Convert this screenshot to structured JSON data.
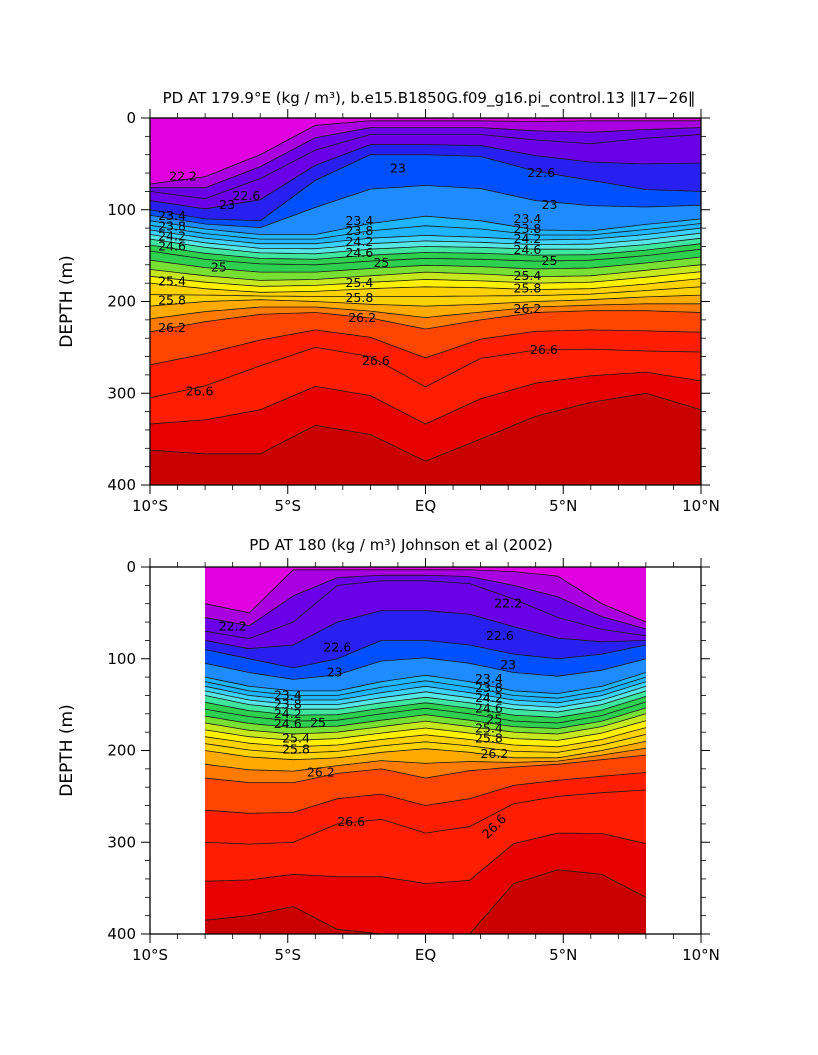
{
  "chart_data": [
    {
      "type": "heatmap",
      "title": "PD AT 179.9°E (kg / m³), b.e15.B1850G.f09_g16.pi_control.13 ‖17−26‖",
      "xlabel": "",
      "ylabel": "DEPTH (m)",
      "xlim": [
        -10,
        10
      ],
      "ylim": [
        400,
        0
      ],
      "x_ticks": [
        -10,
        -5,
        0,
        5,
        10
      ],
      "x_tick_labels": [
        "10°S",
        "5°S",
        "EQ",
        "5°N",
        "10°N"
      ],
      "y_ticks": [
        0,
        100,
        200,
        300,
        400
      ],
      "y_tick_labels": [
        "0",
        "100",
        "200",
        "300",
        "400"
      ],
      "data_xrange": [
        -10,
        10
      ],
      "contour_levels": [
        21.6,
        21.8,
        22.0,
        22.2,
        22.4,
        22.6,
        22.8,
        23.0,
        23.2,
        23.4,
        23.6,
        23.8,
        24.0,
        24.2,
        24.4,
        24.6,
        24.8,
        25.0,
        25.2,
        25.4,
        25.6,
        25.8,
        26.0,
        26.2,
        26.4,
        26.6,
        26.8,
        27.0
      ],
      "isopycnal_depths_m": [
        {
          "value": 22.2,
          "depth": [
            72,
            64,
            40,
            8,
            3,
            3,
            3,
            4,
            3,
            3,
            3
          ]
        },
        {
          "value": 22.6,
          "depth": [
            80,
            88,
            66,
            35,
            18,
            18,
            18,
            24,
            28,
            22,
            18
          ]
        },
        {
          "value": 23.0,
          "depth": [
            100,
            110,
            112,
            68,
            40,
            40,
            42,
            58,
            68,
            78,
            80
          ]
        },
        {
          "value": 23.4,
          "depth": [
            112,
            121,
            127,
            127,
            115,
            107,
            112,
            122,
            123,
            116,
            110
          ]
        },
        {
          "value": 23.8,
          "depth": [
            122,
            131,
            137,
            137,
            131,
            128,
            130,
            133,
            132,
            127,
            120
          ]
        },
        {
          "value": 24.2,
          "depth": [
            132,
            141,
            147,
            148,
            143,
            140,
            141,
            143,
            143,
            138,
            131
          ]
        },
        {
          "value": 24.6,
          "depth": [
            145,
            154,
            159,
            160,
            156,
            153,
            154,
            156,
            155,
            150,
            143
          ]
        },
        {
          "value": 25.0,
          "depth": [
            165,
            172,
            177,
            176,
            172,
            168,
            170,
            173,
            172,
            166,
            160
          ]
        },
        {
          "value": 25.4,
          "depth": [
            180,
            186,
            190,
            189,
            186,
            184,
            185,
            187,
            186,
            181,
            175
          ]
        },
        {
          "value": 25.8,
          "depth": [
            205,
            200,
            198,
            200,
            203,
            205,
            203,
            200,
            198,
            195,
            193
          ]
        },
        {
          "value": 26.2,
          "depth": [
            233,
            222,
            214,
            212,
            218,
            230,
            220,
            212,
            210,
            210,
            212
          ]
        },
        {
          "value": 26.6,
          "depth": [
            305,
            292,
            270,
            250,
            260,
            293,
            262,
            253,
            252,
            254,
            255
          ]
        },
        {
          "value": 27.0,
          "depth": [
            362,
            366,
            366,
            335,
            345,
            374,
            350,
            325,
            310,
            300,
            318
          ]
        }
      ],
      "contour_labels": [
        {
          "text": "22.2",
          "x": -8.8,
          "depth": 64
        },
        {
          "text": "22.6",
          "x": -6.5,
          "depth": 85
        },
        {
          "text": "23",
          "x": -7.2,
          "depth": 95
        },
        {
          "text": "23.4",
          "x": -9.2,
          "depth": 107
        },
        {
          "text": "23.8",
          "x": -9.2,
          "depth": 118
        },
        {
          "text": "24.2",
          "x": -9.2,
          "depth": 129
        },
        {
          "text": "24.6",
          "x": -9.2,
          "depth": 140
        },
        {
          "text": "25",
          "x": -7.5,
          "depth": 163
        },
        {
          "text": "25.4",
          "x": -9.2,
          "depth": 178
        },
        {
          "text": "25.8",
          "x": -9.2,
          "depth": 199
        },
        {
          "text": "26.2",
          "x": -9.2,
          "depth": 229
        },
        {
          "text": "26.6",
          "x": -8.2,
          "depth": 298
        },
        {
          "text": "23.4",
          "x": -2.4,
          "depth": 112
        },
        {
          "text": "23.8",
          "x": -2.4,
          "depth": 123
        },
        {
          "text": "24.2",
          "x": -2.4,
          "depth": 135
        },
        {
          "text": "24.6",
          "x": -2.4,
          "depth": 147
        },
        {
          "text": "25",
          "x": -1.6,
          "depth": 158
        },
        {
          "text": "25.4",
          "x": -2.4,
          "depth": 180
        },
        {
          "text": "25.8",
          "x": -2.4,
          "depth": 196
        },
        {
          "text": "26.2",
          "x": -2.3,
          "depth": 218
        },
        {
          "text": "26.6",
          "x": -1.8,
          "depth": 265
        },
        {
          "text": "23",
          "x": -1.0,
          "depth": 55
        },
        {
          "text": "22.6",
          "x": 4.2,
          "depth": 60
        },
        {
          "text": "23",
          "x": 4.5,
          "depth": 95
        },
        {
          "text": "23.4",
          "x": 3.7,
          "depth": 110
        },
        {
          "text": "23.8",
          "x": 3.7,
          "depth": 121
        },
        {
          "text": "24.2",
          "x": 3.7,
          "depth": 132
        },
        {
          "text": "24.6",
          "x": 3.7,
          "depth": 144
        },
        {
          "text": "25",
          "x": 4.5,
          "depth": 156
        },
        {
          "text": "25.4",
          "x": 3.7,
          "depth": 172
        },
        {
          "text": "25.8",
          "x": 3.7,
          "depth": 186
        },
        {
          "text": "26.2",
          "x": 3.7,
          "depth": 208
        },
        {
          "text": "26.6",
          "x": 4.3,
          "depth": 253
        }
      ]
    },
    {
      "type": "heatmap",
      "title": "PD AT 180 (kg / m³) Johnson et al (2002)",
      "xlabel": "",
      "ylabel": "DEPTH (m)",
      "xlim": [
        -10,
        10
      ],
      "ylim": [
        400,
        0
      ],
      "x_ticks": [
        -10,
        -5,
        0,
        5,
        10
      ],
      "x_tick_labels": [
        "10°S",
        "5°S",
        "EQ",
        "5°N",
        "10°N"
      ],
      "y_ticks": [
        0,
        100,
        200,
        300,
        400
      ],
      "y_tick_labels": [
        "0",
        "100",
        "200",
        "300",
        "400"
      ],
      "data_xrange": [
        -8,
        8
      ],
      "contour_levels": [
        21.6,
        21.8,
        22.0,
        22.2,
        22.4,
        22.6,
        22.8,
        23.0,
        23.2,
        23.4,
        23.6,
        23.8,
        24.0,
        24.2,
        24.4,
        24.6,
        24.8,
        25.0,
        25.2,
        25.4,
        25.6,
        25.8,
        26.0,
        26.2,
        26.4,
        26.6,
        26.8,
        27.0
      ],
      "isopycnal_depths_m": [
        {
          "value": 22.2,
          "depth": [
            40,
            50,
            3,
            3,
            3,
            3,
            3,
            5,
            10,
            40,
            60
          ]
        },
        {
          "value": 22.6,
          "depth": [
            70,
            78,
            60,
            20,
            15,
            15,
            18,
            35,
            55,
            68,
            75
          ]
        },
        {
          "value": 23.0,
          "depth": [
            90,
            100,
            110,
            100,
            80,
            80,
            85,
            95,
            100,
            95,
            85
          ]
        },
        {
          "value": 23.4,
          "depth": [
            120,
            130,
            135,
            135,
            125,
            118,
            125,
            135,
            138,
            130,
            115
          ]
        },
        {
          "value": 23.8,
          "depth": [
            130,
            140,
            145,
            145,
            137,
            130,
            137,
            145,
            148,
            140,
            125
          ]
        },
        {
          "value": 24.2,
          "depth": [
            140,
            150,
            155,
            155,
            148,
            142,
            148,
            155,
            158,
            150,
            135
          ]
        },
        {
          "value": 24.6,
          "depth": [
            155,
            163,
            168,
            167,
            160,
            154,
            160,
            168,
            170,
            162,
            147
          ]
        },
        {
          "value": 25.0,
          "depth": [
            170,
            178,
            182,
            180,
            174,
            168,
            174,
            180,
            182,
            174,
            160
          ]
        },
        {
          "value": 25.4,
          "depth": [
            185,
            192,
            196,
            194,
            188,
            183,
            188,
            194,
            196,
            188,
            175
          ]
        },
        {
          "value": 25.8,
          "depth": [
            200,
            207,
            210,
            208,
            202,
            198,
            202,
            208,
            208,
            200,
            190
          ]
        },
        {
          "value": 26.2,
          "depth": [
            230,
            235,
            235,
            225,
            220,
            230,
            222,
            218,
            215,
            210,
            205
          ]
        },
        {
          "value": 26.6,
          "depth": [
            300,
            302,
            300,
            280,
            275,
            290,
            283,
            258,
            250,
            246,
            243
          ]
        },
        {
          "value": 27.0,
          "depth": [
            385,
            380,
            370,
            395,
            400,
            400,
            400,
            345,
            330,
            335,
            360
          ]
        }
      ],
      "contour_labels": [
        {
          "text": "22.2",
          "x": -7.0,
          "depth": 65
        },
        {
          "text": "22.2",
          "x": 3.0,
          "depth": 40
        },
        {
          "text": "22.6",
          "x": -3.2,
          "depth": 88
        },
        {
          "text": "22.6",
          "x": 2.7,
          "depth": 75
        },
        {
          "text": "23",
          "x": -3.3,
          "depth": 115
        },
        {
          "text": "23",
          "x": 3.0,
          "depth": 107
        },
        {
          "text": "23.4",
          "x": -5.0,
          "depth": 140
        },
        {
          "text": "23.8",
          "x": -5.0,
          "depth": 150
        },
        {
          "text": "24.2",
          "x": -5.0,
          "depth": 160
        },
        {
          "text": "24.6",
          "x": -5.0,
          "depth": 171
        },
        {
          "text": "25",
          "x": -3.9,
          "depth": 170
        },
        {
          "text": "25.4",
          "x": -4.7,
          "depth": 187
        },
        {
          "text": "25.8",
          "x": -4.7,
          "depth": 199
        },
        {
          "text": "26.2",
          "x": -3.8,
          "depth": 224
        },
        {
          "text": "26.6",
          "x": -2.7,
          "depth": 278
        },
        {
          "text": "23.4",
          "x": 2.3,
          "depth": 122
        },
        {
          "text": "23.8",
          "x": 2.3,
          "depth": 132
        },
        {
          "text": "24.2",
          "x": 2.3,
          "depth": 143
        },
        {
          "text": "24.6",
          "x": 2.3,
          "depth": 154
        },
        {
          "text": "25",
          "x": 2.5,
          "depth": 166
        },
        {
          "text": "25.4",
          "x": 2.3,
          "depth": 176
        },
        {
          "text": "25.8",
          "x": 2.3,
          "depth": 187
        },
        {
          "text": "26.2",
          "x": 2.5,
          "depth": 204
        },
        {
          "text": "26.6",
          "x": 2.5,
          "depth": 283,
          "rotate": -45
        }
      ]
    }
  ]
}
